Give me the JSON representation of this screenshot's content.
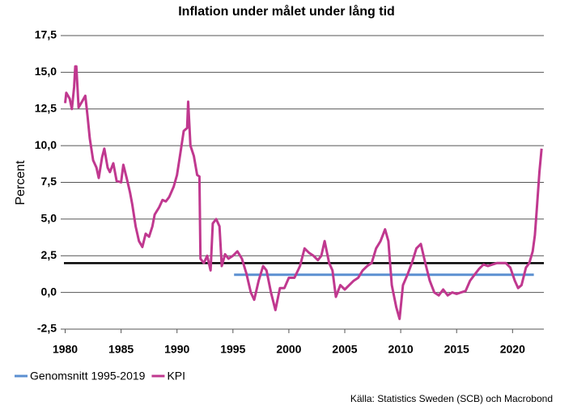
{
  "chart_data": {
    "type": "line",
    "title": "Inflation under målet under lång tid",
    "ylabel": "Percent",
    "source": "Källa: Statistics Sweden (SCB) och Macrobond",
    "xlim": [
      1979.6,
      2022.8
    ],
    "xticks": [
      1980,
      1985,
      1990,
      1995,
      2000,
      2005,
      2010,
      2015,
      2020
    ],
    "ylim": [
      -2.5,
      17.5
    ],
    "yticks": [
      {
        "value": -2.5,
        "label": "-2,5"
      },
      {
        "value": 0,
        "label": "0,0"
      },
      {
        "value": 2.5,
        "label": "2,5"
      },
      {
        "value": 5,
        "label": "5,0"
      },
      {
        "value": 7.5,
        "label": "7,5"
      },
      {
        "value": 10,
        "label": "10,0"
      },
      {
        "value": 12.5,
        "label": "12,5"
      },
      {
        "value": 15,
        "label": "15,0"
      },
      {
        "value": 17.5,
        "label": "17,5"
      }
    ],
    "grid": true,
    "legend": "bottom-left",
    "hline": {
      "value": 2,
      "color": "#000000"
    },
    "series": [
      {
        "name": "Genomsnitt 1995-2019",
        "color": "#5b8fd1",
        "x": [
          1995.1,
          2021.9
        ],
        "values": [
          1.2,
          1.2
        ]
      },
      {
        "name": "KPI",
        "color": "#c0388f",
        "x": [
          1980.0,
          1980.1,
          1980.4,
          1980.6,
          1980.8,
          1980.9,
          1981.0,
          1981.2,
          1981.5,
          1981.8,
          1982.0,
          1982.2,
          1982.5,
          1982.8,
          1983.0,
          1983.3,
          1983.5,
          1983.8,
          1984.0,
          1984.3,
          1984.6,
          1985.0,
          1985.2,
          1985.5,
          1985.8,
          1986.0,
          1986.3,
          1986.6,
          1986.9,
          1987.2,
          1987.5,
          1987.8,
          1988.0,
          1988.4,
          1988.7,
          1989.0,
          1989.3,
          1989.7,
          1990.0,
          1990.3,
          1990.6,
          1990.9,
          1991.0,
          1991.2,
          1991.5,
          1991.8,
          1992.0,
          1992.1,
          1992.4,
          1992.7,
          1993.0,
          1993.2,
          1993.5,
          1993.8,
          1994.0,
          1994.3,
          1994.6,
          1995.0,
          1995.4,
          1995.8,
          1996.2,
          1996.6,
          1996.9,
          1997.3,
          1997.7,
          1998.0,
          1998.4,
          1998.8,
          1999.2,
          1999.6,
          2000.0,
          2000.5,
          2001.0,
          2001.4,
          2001.8,
          2002.2,
          2002.6,
          2002.9,
          2003.2,
          2003.6,
          2003.9,
          2004.2,
          2004.6,
          2005.0,
          2005.4,
          2005.8,
          2006.2,
          2006.6,
          2007.0,
          2007.4,
          2007.8,
          2008.2,
          2008.6,
          2008.9,
          2009.2,
          2009.6,
          2009.9,
          2010.2,
          2010.6,
          2011.0,
          2011.4,
          2011.8,
          2012.2,
          2012.6,
          2013.0,
          2013.4,
          2013.8,
          2014.2,
          2014.6,
          2015.0,
          2015.4,
          2015.8,
          2016.2,
          2016.6,
          2017.0,
          2017.4,
          2017.8,
          2018.2,
          2018.6,
          2019.0,
          2019.4,
          2019.8,
          2020.2,
          2020.5,
          2020.8,
          2021.2,
          2021.5,
          2021.8,
          2022.0,
          2022.2,
          2022.4,
          2022.6
        ],
        "values": [
          12.9,
          13.6,
          13.2,
          12.5,
          14.0,
          15.4,
          15.4,
          12.6,
          13.0,
          13.4,
          12.0,
          10.5,
          9.0,
          8.5,
          7.8,
          9.2,
          9.8,
          8.5,
          8.2,
          8.8,
          7.6,
          7.5,
          8.7,
          7.8,
          6.8,
          6.0,
          4.5,
          3.5,
          3.1,
          4.0,
          3.8,
          4.5,
          5.3,
          5.8,
          6.3,
          6.2,
          6.5,
          7.2,
          8.0,
          9.5,
          11.0,
          11.2,
          13.0,
          10.0,
          9.3,
          8.0,
          7.9,
          2.3,
          2.0,
          2.5,
          1.5,
          4.7,
          5.0,
          4.5,
          1.8,
          2.6,
          2.3,
          2.5,
          2.8,
          2.3,
          1.3,
          0.0,
          -0.5,
          0.8,
          1.8,
          1.5,
          0.0,
          -1.2,
          0.3,
          0.3,
          1.0,
          1.0,
          1.8,
          3.0,
          2.7,
          2.5,
          2.2,
          2.5,
          3.5,
          2.0,
          1.5,
          -0.3,
          0.5,
          0.2,
          0.5,
          0.8,
          1.0,
          1.5,
          1.8,
          2.0,
          3.0,
          3.5,
          4.3,
          3.5,
          0.5,
          -1.0,
          -1.8,
          0.5,
          1.2,
          2.0,
          3.0,
          3.3,
          2.0,
          0.8,
          0.0,
          -0.2,
          0.2,
          -0.2,
          0.0,
          -0.1,
          0.0,
          0.1,
          0.8,
          1.2,
          1.6,
          1.9,
          1.8,
          1.9,
          2.0,
          2.0,
          2.0,
          1.7,
          0.8,
          0.3,
          0.5,
          1.7,
          2.0,
          2.8,
          3.9,
          6.0,
          8.2,
          9.8
        ]
      }
    ]
  }
}
